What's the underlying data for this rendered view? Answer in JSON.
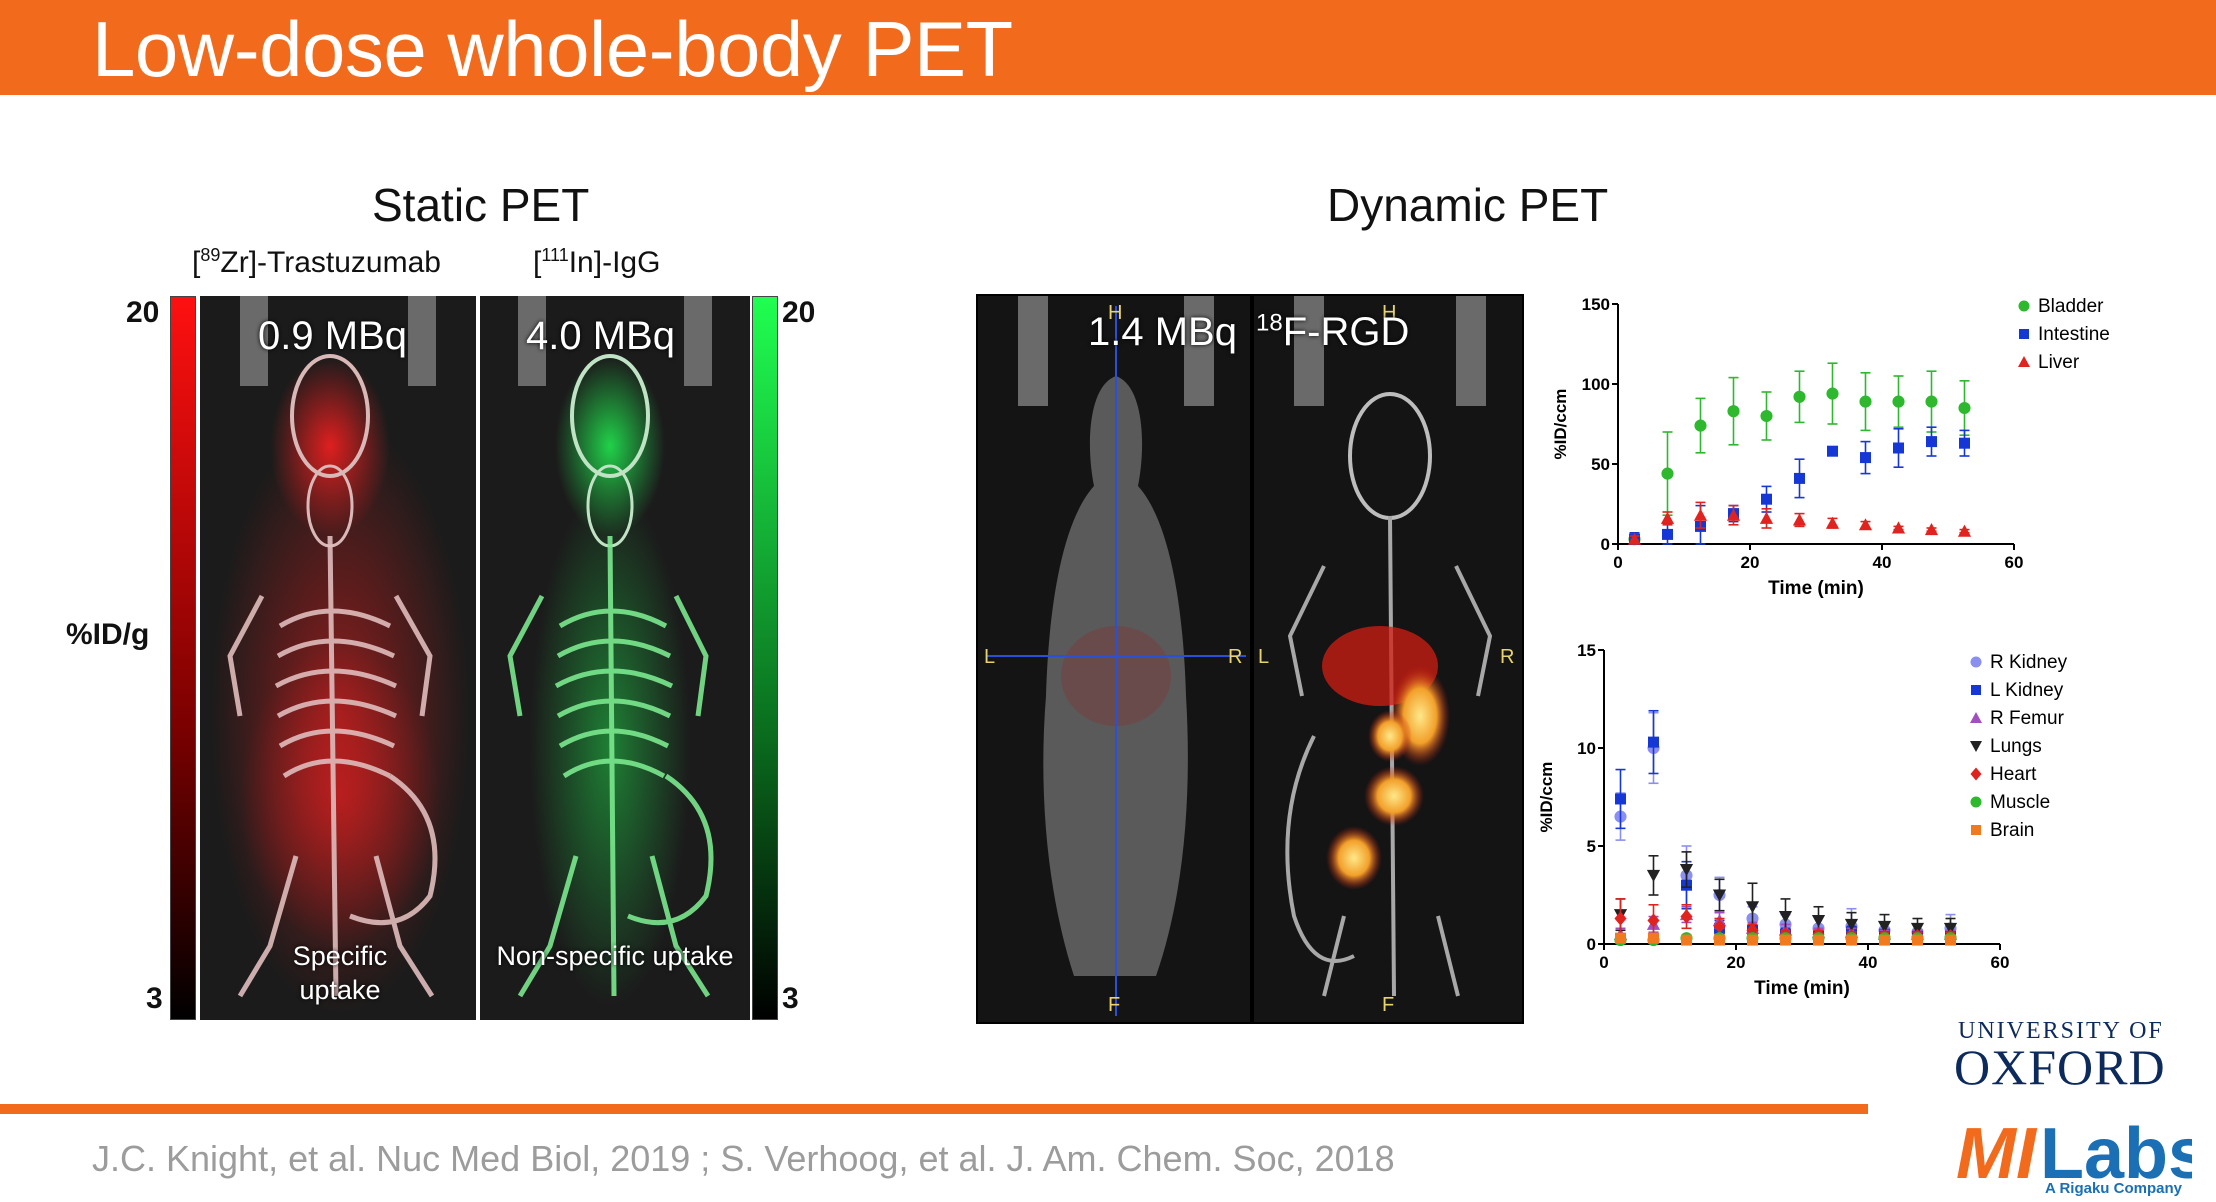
{
  "title": "Low-dose whole-body PET",
  "static": {
    "heading": "Static PET",
    "tracer_left": {
      "pre": "[",
      "sup": "89",
      "post": "Zr]-Trastuzumab"
    },
    "tracer_right": {
      "pre": "[",
      "sup": "111",
      "post": "In]-IgG"
    },
    "scale_left_max": "20",
    "scale_left_min": "3",
    "scale_right_max": "20",
    "scale_right_min": "3",
    "unit": "%ID/g",
    "panel_left_dose": "0.9 MBq",
    "panel_right_dose": "4.0 MBq",
    "caption_left": "Specific uptake",
    "caption_right": "Non-specific uptake",
    "colors": {
      "red": "#ff1a1a",
      "green": "#19d94a"
    }
  },
  "dynamic": {
    "heading": "Dynamic PET",
    "dose": "1.4 MBq",
    "tracer": {
      "sup": "18",
      "post": "F-RGD"
    },
    "orientation": {
      "top": "H",
      "bottom": "F",
      "left": "L",
      "right": "R"
    }
  },
  "chart_data": [
    {
      "type": "scatter",
      "xlabel": "Time (min)",
      "ylabel": "%ID/ccm",
      "xlim": [
        0,
        60
      ],
      "ylim": [
        0,
        150
      ],
      "xticks": [
        0,
        20,
        40,
        60
      ],
      "yticks": [
        0,
        50,
        100,
        150
      ],
      "legend_position": "top-right",
      "series": [
        {
          "name": "Bladder",
          "color": "#2db82d",
          "marker": "circle",
          "x": [
            2.5,
            7.5,
            12.5,
            17.5,
            22.5,
            27.5,
            32.5,
            37.5,
            42.5,
            47.5,
            52.5
          ],
          "y": [
            3,
            44,
            74,
            83,
            80,
            92,
            94,
            89,
            89,
            89,
            85
          ],
          "err": [
            3,
            26,
            17,
            21,
            15,
            16,
            19,
            18,
            16,
            19,
            17
          ]
        },
        {
          "name": "Intestine",
          "color": "#1537d6",
          "marker": "square",
          "x": [
            2.5,
            7.5,
            12.5,
            17.5,
            22.5,
            27.5,
            32.5,
            37.5,
            42.5,
            47.5,
            52.5
          ],
          "y": [
            3,
            6,
            11,
            19,
            28,
            41,
            58,
            54,
            60,
            64,
            63
          ],
          "err": [
            4,
            7,
            13,
            5,
            8,
            12,
            2,
            10,
            12,
            9,
            8
          ]
        },
        {
          "name": "Liver",
          "color": "#e0231f",
          "marker": "triangle",
          "x": [
            2.5,
            7.5,
            12.5,
            17.5,
            22.5,
            27.5,
            32.5,
            37.5,
            42.5,
            47.5,
            52.5
          ],
          "y": [
            3,
            16,
            18,
            18,
            16,
            15,
            13,
            12,
            10,
            9,
            8
          ],
          "err": [
            2,
            4,
            8,
            6,
            6,
            4,
            3,
            2,
            1,
            1,
            1
          ]
        }
      ]
    },
    {
      "type": "scatter",
      "xlabel": "Time (min)",
      "ylabel": "%ID/ccm",
      "xlim": [
        0,
        60
      ],
      "ylim": [
        0,
        15
      ],
      "xticks": [
        0,
        20,
        40,
        60
      ],
      "yticks": [
        0,
        5,
        10,
        15
      ],
      "legend_position": "top-right",
      "series": [
        {
          "name": "R Kidney",
          "color": "#8a8ff0",
          "marker": "circle",
          "x": [
            2.5,
            7.5,
            12.5,
            17.5,
            22.5,
            27.5,
            32.5,
            37.5,
            42.5,
            47.5,
            52.5
          ],
          "y": [
            6.5,
            10,
            3.5,
            2.5,
            1.3,
            1.0,
            0.8,
            0.9,
            0.7,
            0.6,
            0.8
          ],
          "err": [
            1.2,
            1.8,
            1.5,
            0.9,
            0.6,
            0.5,
            0.6,
            0.9,
            0.4,
            0.4,
            0.7
          ]
        },
        {
          "name": "L Kidney",
          "color": "#1537d6",
          "marker": "square",
          "x": [
            2.5,
            7.5,
            12.5,
            17.5,
            22.5,
            27.5,
            32.5,
            37.5,
            42.5,
            47.5,
            52.5
          ],
          "y": [
            7.4,
            10.3,
            3.0,
            0.8,
            0.7,
            0.5,
            0.4,
            0.6,
            0.5,
            0.4,
            0.4
          ],
          "err": [
            1.5,
            1.6,
            1.2,
            0.4,
            0.3,
            0.3,
            0.2,
            0.3,
            0.2,
            0.2,
            0.2
          ]
        },
        {
          "name": "R Femur",
          "color": "#a14fc0",
          "marker": "triangle",
          "x": [
            2.5,
            7.5,
            12.5,
            17.5,
            22.5,
            27.5,
            32.5,
            37.5,
            42.5,
            47.5,
            52.5
          ],
          "y": [
            0.5,
            1.0,
            1.5,
            1.2,
            0.8,
            0.7,
            0.6,
            0.6,
            0.5,
            0.5,
            0.5
          ],
          "err": [
            0.3,
            0.4,
            0.4,
            0.4,
            0.3,
            0.3,
            0.2,
            0.2,
            0.2,
            0.2,
            0.2
          ]
        },
        {
          "name": "Lungs",
          "color": "#222222",
          "marker": "triangle-down",
          "x": [
            2.5,
            7.5,
            12.5,
            17.5,
            22.5,
            27.5,
            32.5,
            37.5,
            42.5,
            47.5,
            52.5
          ],
          "y": [
            1.5,
            3.5,
            3.8,
            2.5,
            1.9,
            1.4,
            1.2,
            1.0,
            0.9,
            0.8,
            0.8
          ],
          "err": [
            0.8,
            1.0,
            0.9,
            0.8,
            1.2,
            0.9,
            0.7,
            0.6,
            0.6,
            0.5,
            0.5
          ]
        },
        {
          "name": "Heart",
          "color": "#e0231f",
          "marker": "diamond",
          "x": [
            2.5,
            7.5,
            12.5,
            17.5,
            22.5,
            27.5,
            32.5,
            37.5,
            42.5,
            47.5,
            52.5
          ],
          "y": [
            1.3,
            1.2,
            1.4,
            0.9,
            0.7,
            0.5,
            0.5,
            0.4,
            0.4,
            0.4,
            0.4
          ],
          "err": [
            1.0,
            0.8,
            0.6,
            0.4,
            0.3,
            0.2,
            0.2,
            0.2,
            0.2,
            0.2,
            0.2
          ]
        },
        {
          "name": "Muscle",
          "color": "#2db82d",
          "marker": "circle",
          "x": [
            2.5,
            7.5,
            12.5,
            17.5,
            22.5,
            27.5,
            32.5,
            37.5,
            42.5,
            47.5,
            52.5
          ],
          "y": [
            0.2,
            0.2,
            0.3,
            0.3,
            0.3,
            0.3,
            0.3,
            0.3,
            0.3,
            0.3,
            0.3
          ],
          "err": [
            0.1,
            0.1,
            0.1,
            0.1,
            0.1,
            0.1,
            0.1,
            0.1,
            0.1,
            0.1,
            0.1
          ]
        },
        {
          "name": "Brain",
          "color": "#f07a1d",
          "marker": "square",
          "x": [
            2.5,
            7.5,
            12.5,
            17.5,
            22.5,
            27.5,
            32.5,
            37.5,
            42.5,
            47.5,
            52.5
          ],
          "y": [
            0.3,
            0.3,
            0.2,
            0.2,
            0.2,
            0.2,
            0.2,
            0.2,
            0.2,
            0.2,
            0.2
          ],
          "err": [
            0.1,
            0.1,
            0.1,
            0.1,
            0.1,
            0.1,
            0.1,
            0.1,
            0.1,
            0.1,
            0.1
          ]
        }
      ]
    }
  ],
  "reference": "J.C. Knight, et al. Nuc Med Biol, 2019 ; S. Verhoog, et al. J. Am. Chem. Soc, 2018",
  "logos": {
    "oxford_top": "UNIVERSITY OF",
    "oxford_main": "OXFORD",
    "milabs": "MILabs",
    "rigaku": "A Rigaku Company"
  }
}
